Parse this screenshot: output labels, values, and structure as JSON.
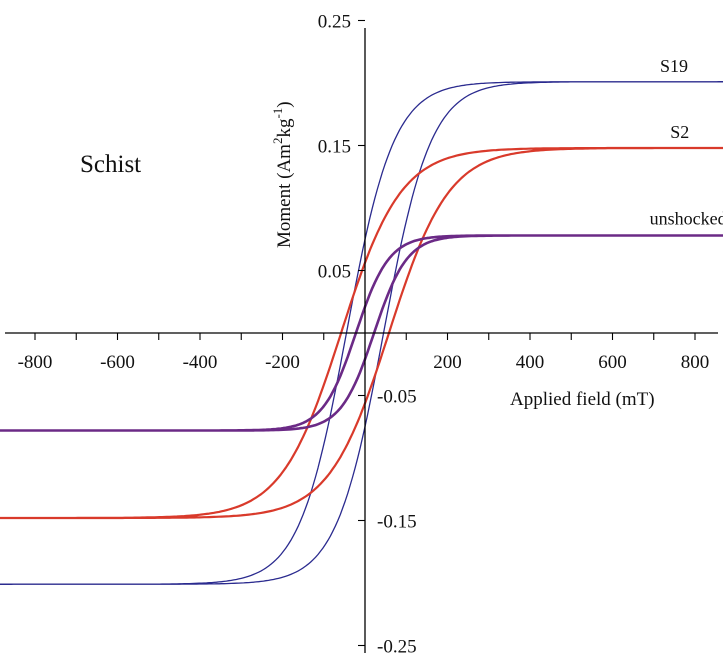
{
  "chart_data": {
    "type": "line",
    "title": "",
    "panel_label": "Schist",
    "xlabel": "Applied field (mT)",
    "ylabel_main": "Moment (Am",
    "ylabel_sup1": "2",
    "ylabel_mid": "kg",
    "ylabel_sup2": "-1",
    "ylabel_end": ")",
    "xlim": [
      -960,
      960
    ],
    "ylim": [
      -0.25,
      0.25
    ],
    "x_ticks": [
      -800,
      -600,
      -400,
      -200,
      200,
      400,
      600,
      800
    ],
    "x_tick_labels": [
      "-800",
      "-600",
      "-400",
      "-200",
      "200",
      "400",
      "600",
      "800"
    ],
    "y_ticks": [
      0.25,
      0.15,
      0.05,
      -0.05,
      -0.15,
      -0.25
    ],
    "y_tick_labels": [
      "0.25",
      "0.15",
      "0.05",
      "-0.05",
      "-0.15",
      "-0.25"
    ],
    "grid": false,
    "legend": "none",
    "series": [
      {
        "name": "S19",
        "color": "#2b2b8f",
        "stroke_width": 1.3,
        "ms": 0.201,
        "hc": 45,
        "width": 115,
        "saturation_field": 900,
        "label_at": [
          715,
          0.209
        ]
      },
      {
        "name": "S2",
        "color": "#d93a2b",
        "stroke_width": 2.2,
        "ms": 0.148,
        "hc": 58,
        "width": 145,
        "saturation_field": 900,
        "label_at": [
          740,
          0.156
        ]
      },
      {
        "name": "unshocked",
        "color": "#6b2a86",
        "stroke_width": 2.6,
        "ms": 0.078,
        "hc": 22,
        "width": 80,
        "saturation_field": 900,
        "label_at": [
          690,
          0.087
        ]
      }
    ]
  }
}
